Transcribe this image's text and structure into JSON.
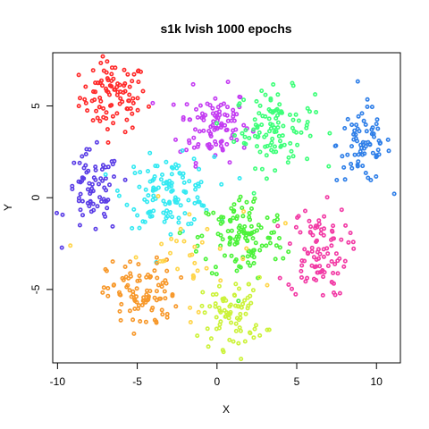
{
  "chart_data": {
    "type": "scatter",
    "title": "s1k lvish 1000 epochs",
    "xlabel": "X",
    "ylabel": "Y",
    "xlim": [
      -10.3,
      11.5
    ],
    "ylim": [
      -9.0,
      7.9
    ],
    "xticks": [
      -10,
      -5,
      0,
      5,
      10
    ],
    "yticks": [
      -5,
      0,
      5
    ],
    "x_tick_labels": [
      "-10",
      "-5",
      "0",
      "5",
      "10"
    ],
    "y_tick_labels": [
      "-5",
      "0",
      "5"
    ],
    "grid": false,
    "legend": "none",
    "clusters": [
      {
        "color": "#ff2a2a",
        "center": [
          -6.5,
          5.5
        ],
        "spread": [
          1.05,
          0.95
        ],
        "n": 95
      },
      {
        "color": "#c43cf2",
        "center": [
          -0.2,
          4.0
        ],
        "spread": [
          1.1,
          1.0
        ],
        "n": 100
      },
      {
        "color": "#3dff79",
        "center": [
          3.6,
          3.8
        ],
        "spread": [
          1.25,
          1.05
        ],
        "n": 110
      },
      {
        "color": "#2f7fe8",
        "center": [
          9.2,
          2.9
        ],
        "spread": [
          0.85,
          1.05
        ],
        "n": 75
      },
      {
        "color": "#5a3de6",
        "center": [
          -7.8,
          0.2
        ],
        "spread": [
          0.85,
          1.15
        ],
        "n": 75
      },
      {
        "color": "#33e9f2",
        "center": [
          -3.0,
          0.3
        ],
        "spread": [
          1.4,
          0.95
        ],
        "n": 120
      },
      {
        "color": "#4cf23a",
        "center": [
          1.6,
          -2.2
        ],
        "spread": [
          1.35,
          1.2
        ],
        "n": 120
      },
      {
        "color": "#f23aa5",
        "center": [
          6.3,
          -2.9
        ],
        "spread": [
          0.95,
          1.25
        ],
        "n": 95
      },
      {
        "color": "#f7982a",
        "center": [
          -4.7,
          -5.3
        ],
        "spread": [
          1.1,
          0.95
        ],
        "n": 95
      },
      {
        "color": "#ccf23a",
        "center": [
          1.0,
          -6.3
        ],
        "spread": [
          1.0,
          0.95
        ],
        "n": 80
      },
      {
        "color": "#ffd54a",
        "center": [
          -2.0,
          -3.2
        ],
        "spread": [
          2.4,
          1.5
        ],
        "n": 35
      }
    ]
  }
}
